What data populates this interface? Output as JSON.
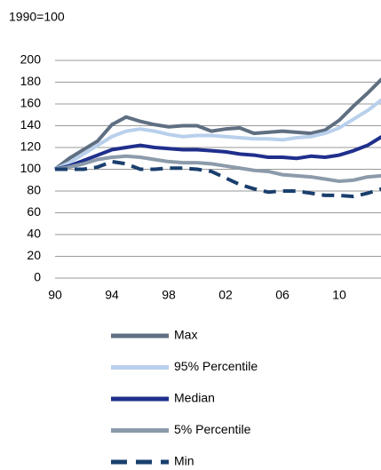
{
  "chart_data": {
    "type": "line",
    "y_label": "1990=100",
    "x": [
      1990,
      1991,
      1992,
      1993,
      1994,
      1995,
      1996,
      1997,
      1998,
      1999,
      2000,
      2001,
      2002,
      2003,
      2004,
      2005,
      2006,
      2007,
      2008,
      2009,
      2010,
      2011,
      2012,
      2013
    ],
    "series": [
      {
        "name": "Max",
        "color": "#5f6f82",
        "values": [
          100,
          110,
          118,
          126,
          141,
          148,
          144,
          141,
          139,
          140,
          140,
          135,
          137,
          138,
          133,
          134,
          135,
          134,
          133,
          136,
          145,
          158,
          170,
          183
        ]
      },
      {
        "name": "95% Percentile",
        "color": "#b8d0ec",
        "values": [
          100,
          106,
          114,
          122,
          130,
          135,
          137,
          135,
          132,
          130,
          131,
          131,
          130,
          129,
          128,
          128,
          127,
          129,
          130,
          133,
          138,
          146,
          154,
          164
        ]
      },
      {
        "name": "Median",
        "color": "#1f2f8c",
        "values": [
          100,
          103,
          108,
          113,
          118,
          120,
          122,
          120,
          119,
          118,
          118,
          117,
          116,
          114,
          113,
          111,
          111,
          110,
          112,
          111,
          113,
          117,
          122,
          130
        ]
      },
      {
        "name": "5% Percentile",
        "color": "#8c9bab",
        "values": [
          100,
          102,
          105,
          109,
          111,
          112,
          111,
          109,
          107,
          106,
          106,
          105,
          103,
          101,
          99,
          98,
          95,
          94,
          93,
          91,
          89,
          90,
          93,
          94
        ]
      },
      {
        "name": "Min",
        "color": "#1a3f6e",
        "linestyle": "dashed",
        "values": [
          100,
          100,
          100,
          102,
          107,
          105,
          100,
          100,
          101,
          101,
          100,
          98,
          92,
          86,
          82,
          79,
          80,
          80,
          78,
          76,
          76,
          75,
          78,
          82
        ]
      }
    ],
    "xlim": [
      1990,
      2013
    ],
    "xticks": [
      {
        "value": 1990,
        "label": "90"
      },
      {
        "value": 1994,
        "label": "94"
      },
      {
        "value": 1998,
        "label": "98"
      },
      {
        "value": 2002,
        "label": "02"
      },
      {
        "value": 2006,
        "label": "06"
      },
      {
        "value": 2010,
        "label": "10"
      }
    ],
    "ylim": [
      0,
      200
    ],
    "yticks": [
      0,
      20,
      40,
      60,
      80,
      100,
      120,
      140,
      160,
      180,
      200
    ],
    "grid": true
  }
}
